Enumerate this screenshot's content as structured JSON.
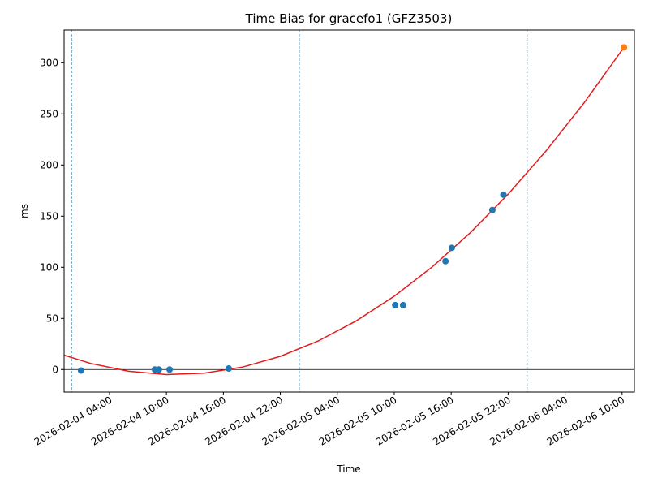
{
  "chart_data": {
    "type": "scatter",
    "title": "Time Bias for gracefo1 (GFZ3503)",
    "xlabel": "Time",
    "ylabel": "ms",
    "xlim": [
      "2026-02-03 23:13",
      "2026-02-06 11:18"
    ],
    "xticks": [
      "2026-02-04 04:00",
      "2026-02-04 10:00",
      "2026-02-04 16:00",
      "2026-02-04 22:00",
      "2026-02-05 04:00",
      "2026-02-05 10:00",
      "2026-02-05 16:00",
      "2026-02-05 22:00",
      "2026-02-06 04:00",
      "2026-02-06 10:00"
    ],
    "ylim": [
      -22,
      332
    ],
    "yticks": [
      0,
      50,
      100,
      150,
      200,
      250,
      300
    ],
    "x": [
      "2026-02-04 01:00",
      "2026-02-04 08:47",
      "2026-02-04 09:12",
      "2026-02-04 10:20",
      "2026-02-04 16:34",
      "2026-02-05 10:06",
      "2026-02-05 10:56",
      "2026-02-05 15:24",
      "2026-02-05 16:04",
      "2026-02-05 20:20",
      "2026-02-05 21:30"
    ],
    "values": [
      -1,
      0,
      0,
      0,
      1,
      63,
      63,
      106,
      119,
      156,
      171
    ],
    "color": "#1f77b4",
    "highlight": {
      "x": [
        "2026-02-06 10:12"
      ],
      "values": [
        315
      ],
      "color": "#ff7f0e"
    },
    "fit": {
      "color": "#e41a1c",
      "x": [
        "2026-02-03 23:13",
        "2026-02-04 02:00",
        "2026-02-04 06:00",
        "2026-02-04 10:00",
        "2026-02-04 14:00",
        "2026-02-04 18:00",
        "2026-02-04 22:00",
        "2026-02-05 02:00",
        "2026-02-05 06:00",
        "2026-02-05 10:00",
        "2026-02-05 14:00",
        "2026-02-05 18:00",
        "2026-02-05 22:00",
        "2026-02-06 02:00",
        "2026-02-06 06:00",
        "2026-02-06 10:12"
      ],
      "values": [
        14,
        6,
        -1.7,
        -4.9,
        -3.5,
        2.4,
        12.9,
        28,
        47.6,
        71.7,
        100.4,
        133.7,
        171.5,
        213.9,
        260.8,
        315
      ]
    },
    "vlines": [
      "2026-02-04 00:00",
      "2026-02-05 00:00",
      "2026-02-06 00:00"
    ],
    "hline": 0
  }
}
